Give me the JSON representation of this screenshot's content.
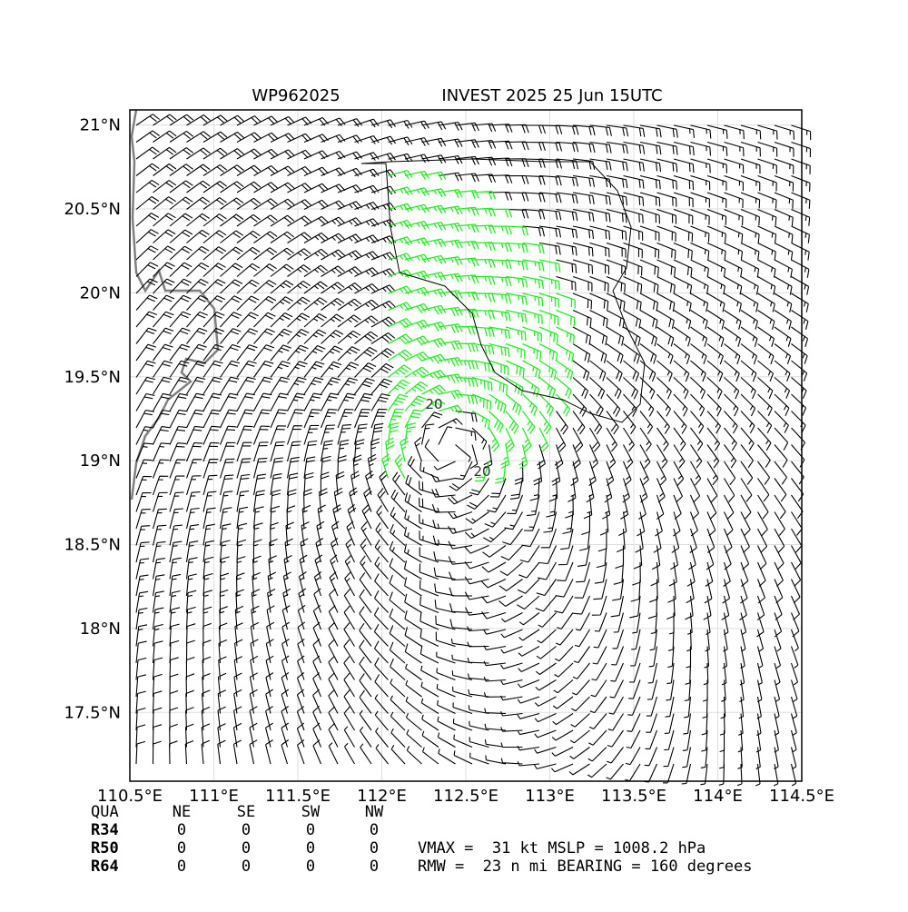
{
  "header": {
    "storm_id": "WP962025",
    "title": "INVEST 2025 25 Jun 15UTC"
  },
  "map": {
    "xlim": [
      110.5,
      114.5
    ],
    "ylim": [
      17.09,
      21.09
    ],
    "xticks": [
      {
        "value": 110.5,
        "label": "110.5°E"
      },
      {
        "value": 111,
        "label": "111°E"
      },
      {
        "value": 111.5,
        "label": "111.5°E"
      },
      {
        "value": 112,
        "label": "112°E"
      },
      {
        "value": 112.5,
        "label": "112.5°E"
      },
      {
        "value": 113,
        "label": "113°E"
      },
      {
        "value": 113.5,
        "label": "113.5°E"
      },
      {
        "value": 114,
        "label": "114°E"
      },
      {
        "value": 114.5,
        "label": "114.5°E"
      }
    ],
    "yticks": [
      {
        "value": 17.5,
        "label": "17.5°N"
      },
      {
        "value": 18,
        "label": "18°N"
      },
      {
        "value": 18.5,
        "label": "18.5°N"
      },
      {
        "value": 19,
        "label": "19°N"
      },
      {
        "value": 19.5,
        "label": "19.5°N"
      },
      {
        "value": 20,
        "label": "20°N"
      },
      {
        "value": 20.5,
        "label": "20.5°N"
      },
      {
        "value": 21,
        "label": "21°N"
      }
    ],
    "contour_labels": [
      "20",
      "20"
    ]
  },
  "table": {
    "header": [
      "QUA",
      "NE",
      "SE",
      "SW",
      "NW"
    ],
    "rows": [
      [
        "R34",
        "0",
        "0",
        "0",
        "0"
      ],
      [
        "R50",
        "0",
        "0",
        "0",
        "0"
      ],
      [
        "R64",
        "0",
        "0",
        "0",
        "0"
      ]
    ]
  },
  "info": [
    "VMAX =  31 kt MSLP = 1008.2 hPa",
    "RMW =  23 n mi BEARING = 160 degrees"
  ]
}
